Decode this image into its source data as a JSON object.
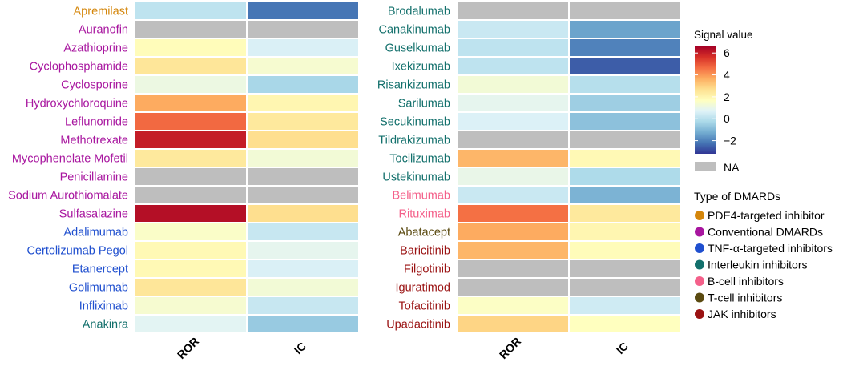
{
  "chart_data": {
    "type": "heatmap",
    "columns": [
      "ROR",
      "IC"
    ],
    "colorbar": {
      "title": "Signal value",
      "ticks": [
        6,
        4,
        2,
        0,
        -2
      ],
      "tick_labels": [
        "6",
        "4",
        "2",
        "0",
        "−2"
      ],
      "range": [
        -3.2,
        6.6
      ],
      "na_label": "NA",
      "na_color": "#bebebe",
      "palette": [
        "#313695",
        "#4575b4",
        "#74add1",
        "#abd9e9",
        "#e0f3f8",
        "#ffffbf",
        "#fee090",
        "#fdae61",
        "#f46d43",
        "#d73027",
        "#a50026"
      ]
    },
    "groups_legend": {
      "title": "Type of DMARDs",
      "items": [
        {
          "label": "PDE4-targeted inhibitor",
          "color": "#d4860b"
        },
        {
          "label": "Conventional DMARDs",
          "color": "#a8169f"
        },
        {
          "label": "TNF-α-targeted inhibitors",
          "color": "#1f4fcf"
        },
        {
          "label": "Interleukin inhibitors",
          "color": "#13706c"
        },
        {
          "label": "B-cell inhibitors",
          "color": "#f4608a"
        },
        {
          "label": "T-cell inhibitors",
          "color": "#5a4a10"
        },
        {
          "label": "JAK inhibitors",
          "color": "#9a1212"
        }
      ]
    },
    "panels": [
      {
        "rows": [
          {
            "drug": "Apremilast",
            "group": 0,
            "ROR": 0.1,
            "IC": -2.2
          },
          {
            "drug": "Auranofin",
            "group": 1,
            "ROR": null,
            "IC": null
          },
          {
            "drug": "Azathioprine",
            "group": 1,
            "ROR": 1.8,
            "IC": 0.6
          },
          {
            "drug": "Cyclophosphamide",
            "group": 1,
            "ROR": 2.5,
            "IC": 1.4
          },
          {
            "drug": "Cyclosporine",
            "group": 1,
            "ROR": 1.1,
            "IC": -0.3
          },
          {
            "drug": "Hydroxychloroquine",
            "group": 1,
            "ROR": 3.7,
            "IC": 2.0
          },
          {
            "drug": "Leflunomide",
            "group": 1,
            "ROR": 4.7,
            "IC": 2.4
          },
          {
            "drug": "Methotrexate",
            "group": 1,
            "ROR": 6.0,
            "IC": 2.7
          },
          {
            "drug": "Mycophenolate Mofetil",
            "group": 1,
            "ROR": 2.4,
            "IC": 1.3
          },
          {
            "drug": "Penicillamine",
            "group": 1,
            "ROR": null,
            "IC": null
          },
          {
            "drug": "Sodium Aurothiomalate",
            "group": 1,
            "ROR": null,
            "IC": null
          },
          {
            "drug": "Sulfasalazine",
            "group": 1,
            "ROR": 6.3,
            "IC": 2.7
          },
          {
            "drug": "Adalimumab",
            "group": 2,
            "ROR": 1.55,
            "IC": 0.25
          },
          {
            "drug": "Certolizumab Pegol",
            "group": 2,
            "ROR": 1.9,
            "IC": 0.9
          },
          {
            "drug": "Etanercept",
            "group": 2,
            "ROR": 1.9,
            "IC": 0.6
          },
          {
            "drug": "Golimumab",
            "group": 2,
            "ROR": 2.5,
            "IC": 1.3
          },
          {
            "drug": "Infliximab",
            "group": 2,
            "ROR": 1.4,
            "IC": 0.25
          },
          {
            "drug": "Anakinra",
            "group": 3,
            "ROR": 0.8,
            "IC": -0.6
          }
        ]
      },
      {
        "rows": [
          {
            "drug": "Brodalumab",
            "group": 3,
            "ROR": null,
            "IC": null
          },
          {
            "drug": "Canakinumab",
            "group": 3,
            "ROR": 0.3,
            "IC": -1.4
          },
          {
            "drug": "Guselkumab",
            "group": 3,
            "ROR": 0.1,
            "IC": -2.0
          },
          {
            "drug": "Ixekizumab",
            "group": 3,
            "ROR": 0.1,
            "IC": -2.6
          },
          {
            "drug": "Risankizumab",
            "group": 3,
            "ROR": 1.3,
            "IC": -0.05
          },
          {
            "drug": "Sarilumab",
            "group": 3,
            "ROR": 0.9,
            "IC": -0.5
          },
          {
            "drug": "Secukinumab",
            "group": 3,
            "ROR": 0.65,
            "IC": -0.8
          },
          {
            "drug": "Tildrakizumab",
            "group": 3,
            "ROR": null,
            "IC": null
          },
          {
            "drug": "Tocilizumab",
            "group": 3,
            "ROR": 3.5,
            "IC": 1.9
          },
          {
            "drug": "Ustekinumab",
            "group": 3,
            "ROR": 1.0,
            "IC": -0.2
          },
          {
            "drug": "Belimumab",
            "group": 4,
            "ROR": 0.3,
            "IC": -1.1
          },
          {
            "drug": "Rituximab",
            "group": 4,
            "ROR": 4.6,
            "IC": 2.4
          },
          {
            "drug": "Abatacept",
            "group": 5,
            "ROR": 3.7,
            "IC": 2.0
          },
          {
            "drug": "Baricitinib",
            "group": 6,
            "ROR": 3.5,
            "IC": 1.8
          },
          {
            "drug": "Filgotinib",
            "group": 6,
            "ROR": null,
            "IC": null
          },
          {
            "drug": "Iguratimod",
            "group": 6,
            "ROR": null,
            "IC": null
          },
          {
            "drug": "Tofacitinib",
            "group": 6,
            "ROR": 1.6,
            "IC": 0.4
          },
          {
            "drug": "Upadacitinib",
            "group": 6,
            "ROR": 2.9,
            "IC": 1.7
          }
        ]
      }
    ]
  }
}
